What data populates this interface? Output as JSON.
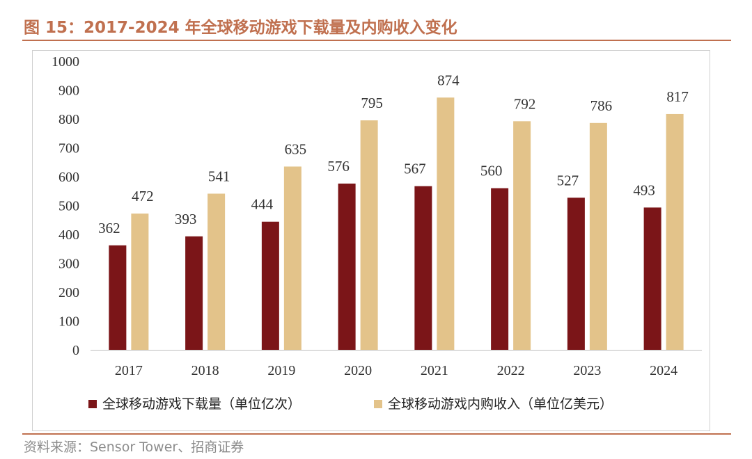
{
  "figure": {
    "title": "图 15：2017-2024 年全球移动游戏下载量及内购收入变化",
    "source": "资料来源：Sensor Tower、招商证券"
  },
  "chart_data": {
    "type": "bar",
    "categories": [
      "2017",
      "2018",
      "2019",
      "2020",
      "2021",
      "2022",
      "2023",
      "2024"
    ],
    "series": [
      {
        "name": "全球移动游戏下载量（单位亿次）",
        "color": "#7b1518",
        "values": [
          362,
          393,
          444,
          576,
          567,
          560,
          527,
          493
        ]
      },
      {
        "name": "全球移动游戏内购收入（单位亿美元）",
        "color": "#e3c38a",
        "values": [
          472,
          541,
          635,
          795,
          874,
          792,
          786,
          817
        ]
      }
    ],
    "ylim": [
      0,
      1000
    ],
    "yticks": [
      0,
      100,
      200,
      300,
      400,
      500,
      600,
      700,
      800,
      900,
      1000
    ],
    "grid": false,
    "data_labels": true,
    "legend_position": "bottom"
  }
}
